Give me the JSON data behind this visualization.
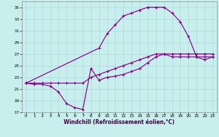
{
  "xlabel": "Windchill (Refroidissement éolien,°C)",
  "bg_color": "#c8eeee",
  "grid_color": "#a8d8d8",
  "line_color": "#880088",
  "xlim": [
    -0.5,
    23.5
  ],
  "ylim": [
    17,
    36
  ],
  "yticks": [
    17,
    19,
    21,
    23,
    25,
    27,
    29,
    31,
    33,
    35
  ],
  "xticks": [
    0,
    1,
    2,
    3,
    4,
    5,
    6,
    7,
    8,
    9,
    10,
    11,
    12,
    13,
    14,
    15,
    16,
    17,
    18,
    19,
    20,
    21,
    22,
    23
  ],
  "s1x": [
    0,
    1,
    2,
    3,
    4,
    5,
    6,
    7,
    8,
    9,
    10,
    11,
    12,
    13,
    14,
    15,
    16,
    17,
    18,
    19,
    20,
    21,
    22,
    23
  ],
  "s1y": [
    22.0,
    21.8,
    21.8,
    21.5,
    20.5,
    18.5,
    17.8,
    17.5,
    24.5,
    22.5,
    23.0,
    23.2,
    23.5,
    24.0,
    24.5,
    25.5,
    26.5,
    27.0,
    26.5,
    26.5,
    26.5,
    26.5,
    26.5,
    26.5
  ],
  "s2x": [
    0,
    1,
    2,
    3,
    4,
    5,
    6,
    7,
    8,
    9,
    10,
    11,
    12,
    13,
    14,
    15,
    16,
    17,
    18,
    19,
    20,
    21,
    22,
    23
  ],
  "s2y": [
    22.0,
    22.0,
    22.0,
    22.0,
    22.0,
    22.0,
    22.0,
    22.0,
    23.0,
    23.5,
    24.0,
    24.5,
    25.0,
    25.5,
    26.0,
    26.5,
    27.0,
    27.0,
    27.0,
    27.0,
    27.0,
    27.0,
    27.0,
    27.0
  ],
  "s3x": [
    0,
    9,
    10,
    11,
    12,
    13,
    14,
    15,
    16,
    17,
    18,
    19,
    20,
    21,
    22,
    23
  ],
  "s3y": [
    22.0,
    28.0,
    30.5,
    32.0,
    33.5,
    34.0,
    34.5,
    35.0,
    35.0,
    35.0,
    34.0,
    32.5,
    30.0,
    26.5,
    26.0,
    26.5
  ]
}
